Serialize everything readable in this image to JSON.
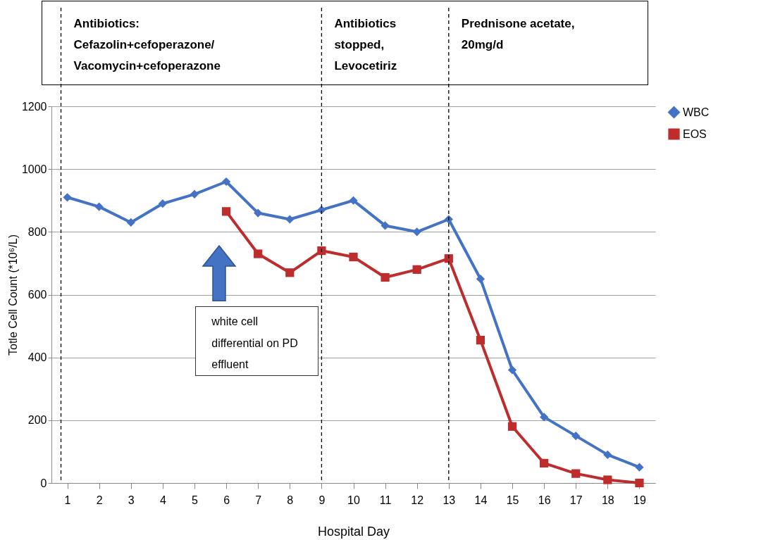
{
  "chart_data": {
    "type": "line",
    "xlabel": "Hospital Day",
    "ylabel": "Totle Cell Count (*10⁶/L)",
    "x": [
      1,
      2,
      3,
      4,
      5,
      6,
      7,
      8,
      9,
      10,
      11,
      12,
      13,
      14,
      15,
      16,
      17,
      18,
      19
    ],
    "xlim": [
      0.5,
      19.5
    ],
    "xticks": [
      1,
      2,
      3,
      4,
      5,
      6,
      7,
      8,
      9,
      10,
      11,
      12,
      13,
      14,
      15,
      16,
      17,
      18,
      19
    ],
    "ylim": [
      0,
      1200
    ],
    "yticks": [
      0,
      200,
      400,
      600,
      800,
      1000,
      1200
    ],
    "series": [
      {
        "name": "WBC",
        "color": "#4472c4",
        "marker": "diamond",
        "values": [
          910,
          880,
          830,
          890,
          920,
          960,
          860,
          840,
          870,
          900,
          820,
          800,
          840,
          650,
          360,
          210,
          150,
          90,
          50
        ]
      },
      {
        "name": "EOS",
        "color": "#be2d2d",
        "marker": "square",
        "values": [
          null,
          null,
          null,
          null,
          null,
          865,
          730,
          670,
          740,
          720,
          655,
          680,
          715,
          455,
          180,
          63,
          30,
          10,
          0
        ]
      }
    ],
    "ref_lines": [
      {
        "axis": "x",
        "value": 0.8,
        "label": "Antibiotics:\nCefazolin+cefoperazone/\nVacomycin+cefoperazone",
        "line_style": "dashed",
        "color": "#000000"
      },
      {
        "axis": "x",
        "value": 9,
        "label": "Antibiotics\nstopped,\nLevocetiriz",
        "line_style": "dashed",
        "color": "#000000"
      },
      {
        "axis": "x",
        "value": 13,
        "label": "Prednisone acetate,\n20mg/d",
        "line_style": "dashed",
        "color": "#000000"
      }
    ],
    "annotations": [
      "white cell differential on PD effluent"
    ],
    "grid": "y",
    "legend": "right",
    "line_style": "solid"
  }
}
